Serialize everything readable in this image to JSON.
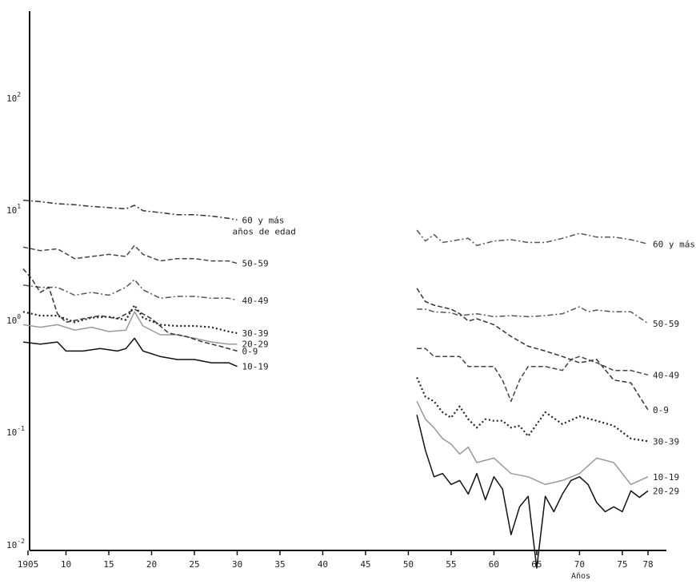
{
  "chart_data": {
    "type": "line",
    "title": "",
    "xlabel": "Años",
    "ylabel": "",
    "y_scale": "log",
    "xlim": [
      1905,
      1982
    ],
    "x_ticks": [
      "1905",
      "10",
      "15",
      "20",
      "25",
      "30",
      "35",
      "40",
      "45",
      "50",
      "55",
      "60",
      "65",
      "70",
      "75",
      "78"
    ],
    "y_ticks": [
      "10^2",
      "10^1",
      "10^0",
      "10^-1",
      "10^-2"
    ],
    "grid": false,
    "legend": "labels at line ends",
    "series": [
      {
        "name": "60 y más años de edad",
        "style": "dash-dot",
        "color": "#333333",
        "x": [
          1905,
          1907,
          1909,
          1911,
          1913,
          1915,
          1917,
          1918,
          1919,
          1921,
          1923,
          1925,
          1927,
          1929,
          1930
        ],
        "y": [
          7.9,
          7.6,
          7.2,
          7.0,
          6.7,
          6.5,
          6.3,
          6.9,
          6.0,
          5.7,
          5.4,
          5.4,
          5.2,
          4.9,
          4.7
        ]
      },
      {
        "name": "50-59",
        "style": "dash",
        "color": "#444444",
        "x": [
          1905,
          1907,
          1909,
          1911,
          1913,
          1915,
          1917,
          1918,
          1919,
          1921,
          1923,
          1925,
          1927,
          1929,
          1930
        ],
        "y": [
          2.3,
          2.1,
          2.2,
          1.7,
          1.8,
          1.9,
          1.8,
          2.4,
          1.9,
          1.6,
          1.7,
          1.7,
          1.6,
          1.6,
          1.5
        ]
      },
      {
        "name": "40-49",
        "style": "dash-dot",
        "color": "#555555",
        "x": [
          1905,
          1907,
          1909,
          1911,
          1913,
          1915,
          1917,
          1918,
          1919,
          1921,
          1923,
          1925,
          1927,
          1929,
          1930
        ],
        "y": [
          0.85,
          0.8,
          0.8,
          0.65,
          0.7,
          0.65,
          0.8,
          0.98,
          0.75,
          0.6,
          0.63,
          0.63,
          0.6,
          0.6,
          0.57
        ]
      },
      {
        "name": "30-39",
        "style": "dotted",
        "color": "#222222",
        "x": [
          1905,
          1907,
          1909,
          1911,
          1913,
          1915,
          1917,
          1918,
          1919,
          1921,
          1923,
          1925,
          1927,
          1929,
          1930
        ],
        "y": [
          0.42,
          0.38,
          0.38,
          0.32,
          0.36,
          0.37,
          0.34,
          0.5,
          0.36,
          0.3,
          0.29,
          0.29,
          0.28,
          0.25,
          0.24
        ]
      },
      {
        "name": "20-29",
        "style": "solid",
        "color": "#9a9a9a",
        "x": [
          1905,
          1907,
          1909,
          1911,
          1913,
          1915,
          1917,
          1918,
          1919,
          1921,
          1923,
          1925,
          1927,
          1929,
          1930
        ],
        "y": [
          0.3,
          0.28,
          0.3,
          0.26,
          0.28,
          0.25,
          0.26,
          0.42,
          0.29,
          0.23,
          0.23,
          0.21,
          0.19,
          0.18,
          0.18
        ]
      },
      {
        "name": "0-9",
        "style": "dash",
        "color": "#333333",
        "x": [
          1905,
          1906,
          1907,
          1908,
          1909,
          1910,
          1912,
          1914,
          1916,
          1918,
          1920,
          1922,
          1924,
          1926,
          1928,
          1930
        ],
        "y": [
          1.3,
          1.0,
          0.7,
          0.8,
          0.4,
          0.32,
          0.35,
          0.38,
          0.35,
          0.45,
          0.35,
          0.24,
          0.22,
          0.19,
          0.17,
          0.15
        ]
      },
      {
        "name": "10-19",
        "style": "solid",
        "color": "#111111",
        "x": [
          1905,
          1907,
          1909,
          1910,
          1912,
          1914,
          1916,
          1917,
          1918,
          1919,
          1921,
          1923,
          1925,
          1927,
          1929,
          1930
        ],
        "y": [
          0.19,
          0.18,
          0.19,
          0.15,
          0.15,
          0.16,
          0.15,
          0.16,
          0.21,
          0.15,
          0.13,
          0.12,
          0.12,
          0.11,
          0.11,
          0.1
        ]
      },
      {
        "name": "60 y más",
        "style": "dash-dot",
        "color": "#555555",
        "x": [
          1951,
          1952,
          1953,
          1954,
          1956,
          1957,
          1958,
          1960,
          1962,
          1964,
          1966,
          1968,
          1970,
          1972,
          1974,
          1976,
          1978
        ],
        "y": [
          3.6,
          2.7,
          3.2,
          2.6,
          2.8,
          2.9,
          2.4,
          2.7,
          2.8,
          2.6,
          2.6,
          2.9,
          3.3,
          3.0,
          3.0,
          2.8,
          2.5
        ]
      },
      {
        "name": "50-59",
        "style": "dash-dot",
        "color": "#555555",
        "x": [
          1951,
          1952,
          1953,
          1955,
          1956,
          1957,
          1958,
          1960,
          1962,
          1964,
          1966,
          1968,
          1970,
          1971,
          1972,
          1974,
          1976,
          1978
        ],
        "y": [
          0.45,
          0.45,
          0.42,
          0.41,
          0.38,
          0.39,
          0.4,
          0.37,
          0.38,
          0.37,
          0.38,
          0.4,
          0.48,
          0.42,
          0.44,
          0.42,
          0.42,
          0.31
        ]
      },
      {
        "name": "0-9",
        "style": "dash",
        "color": "#333333",
        "x": [
          1951,
          1952,
          1953,
          1955,
          1956,
          1957,
          1958,
          1960,
          1962,
          1964,
          1966,
          1968,
          1970,
          1972,
          1974,
          1976,
          1978
        ],
        "y": [
          0.78,
          0.55,
          0.5,
          0.45,
          0.4,
          0.33,
          0.35,
          0.3,
          0.22,
          0.17,
          0.15,
          0.13,
          0.11,
          0.12,
          0.07,
          0.065,
          0.032
        ]
      },
      {
        "name": "40-49",
        "style": "dash",
        "color": "#444444",
        "x": [
          1951,
          1952,
          1953,
          1954,
          1956,
          1957,
          1958,
          1960,
          1961,
          1962,
          1963,
          1964,
          1966,
          1968,
          1969,
          1970,
          1972,
          1974,
          1976,
          1978
        ],
        "y": [
          0.16,
          0.16,
          0.13,
          0.13,
          0.13,
          0.1,
          0.1,
          0.1,
          0.07,
          0.04,
          0.07,
          0.1,
          0.1,
          0.09,
          0.12,
          0.13,
          0.11,
          0.09,
          0.09,
          0.08
        ]
      },
      {
        "name": "30-39",
        "style": "dotted",
        "color": "#222222",
        "x": [
          1951,
          1952,
          1953,
          1954,
          1955,
          1956,
          1957,
          1958,
          1959,
          1960,
          1961,
          1962,
          1963,
          1964,
          1966,
          1968,
          1970,
          1972,
          1974,
          1976,
          1978
        ],
        "y": [
          0.075,
          0.045,
          0.04,
          0.03,
          0.026,
          0.035,
          0.025,
          0.02,
          0.025,
          0.024,
          0.024,
          0.02,
          0.021,
          0.016,
          0.03,
          0.022,
          0.027,
          0.024,
          0.021,
          0.015,
          0.014
        ]
      },
      {
        "name": "10-19",
        "style": "solid",
        "color": "#999999",
        "x": [
          1951,
          1952,
          1953,
          1954,
          1955,
          1956,
          1957,
          1958,
          1960,
          1962,
          1964,
          1966,
          1968,
          1970,
          1972,
          1974,
          1976,
          1978
        ],
        "y": [
          0.04,
          0.025,
          0.02,
          0.015,
          0.013,
          0.01,
          0.012,
          0.008,
          0.009,
          0.006,
          0.0055,
          0.0045,
          0.005,
          0.006,
          0.009,
          0.008,
          0.0045,
          0.0055
        ]
      },
      {
        "name": "20-29",
        "style": "solid",
        "color": "#111111",
        "x": [
          1951,
          1952,
          1953,
          1954,
          1955,
          1956,
          1957,
          1958,
          1959,
          1960,
          1961,
          1962,
          1963,
          1964,
          1965,
          1966,
          1967,
          1968,
          1969,
          1970,
          1971,
          1972,
          1973,
          1974,
          1975,
          1976,
          1977,
          1978
        ],
        "y": [
          0.028,
          0.011,
          0.0055,
          0.006,
          0.0045,
          0.005,
          0.0035,
          0.006,
          0.003,
          0.0055,
          0.004,
          0.0012,
          0.0025,
          0.0033,
          0.0005,
          0.0033,
          0.0022,
          0.0035,
          0.005,
          0.0055,
          0.0045,
          0.0028,
          0.0022,
          0.0025,
          0.0022,
          0.0038,
          0.0032,
          0.0038
        ]
      }
    ]
  }
}
